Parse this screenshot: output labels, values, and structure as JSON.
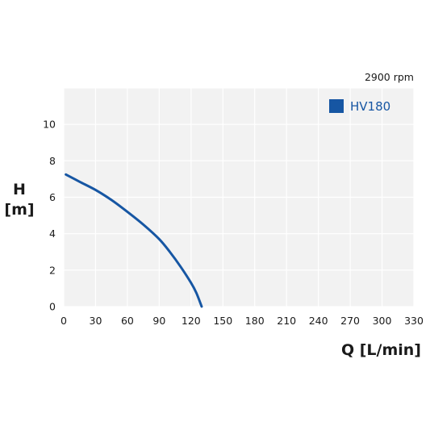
{
  "chart_data": {
    "type": "line",
    "subtitle": "2900 rpm",
    "xlabel": "Q [L/min]",
    "ylabel_line1": "H",
    "ylabel_line2": "[m]",
    "xlim": [
      0,
      330
    ],
    "ylim": [
      0,
      12
    ],
    "xticks": [
      0,
      30,
      60,
      90,
      120,
      150,
      180,
      210,
      240,
      270,
      300,
      330
    ],
    "yticks": [
      0,
      2,
      4,
      6,
      8,
      10
    ],
    "x_tick_labels": [
      "0",
      "30",
      "60",
      "90",
      "120",
      "150",
      "180",
      "210",
      "240",
      "270",
      "300",
      "330"
    ],
    "y_tick_labels": [
      "0",
      "2",
      "4",
      "6",
      "8",
      "10"
    ],
    "grid": true,
    "legend_position": "top-right",
    "series": [
      {
        "name": "HV180",
        "color": "#1656a3",
        "points": [
          [
            2,
            7.25
          ],
          [
            15,
            6.85
          ],
          [
            30,
            6.4
          ],
          [
            45,
            5.85
          ],
          [
            60,
            5.2
          ],
          [
            75,
            4.5
          ],
          [
            90,
            3.7
          ],
          [
            100,
            3.0
          ],
          [
            110,
            2.2
          ],
          [
            120,
            1.3
          ],
          [
            125,
            0.75
          ],
          [
            130,
            0.0
          ]
        ]
      }
    ]
  },
  "colors": {
    "plot_background": "#f2f2f2",
    "grid": "#ffffff",
    "text": "#1a1a1a"
  }
}
